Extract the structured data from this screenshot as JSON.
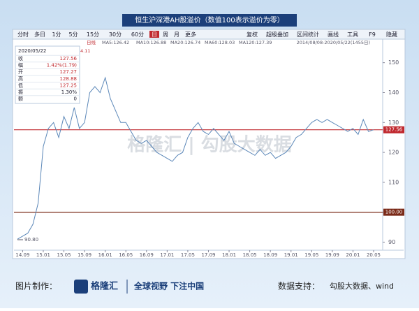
{
  "title": "恒生沪深港AH股溢价（数值100表示溢价为零）",
  "toolbar": {
    "left": [
      "分时",
      "多日",
      "1分",
      "5分",
      "15分",
      "30分",
      "60分",
      "日",
      "周",
      "月",
      "更多"
    ],
    "right": [
      "复权",
      "超级叠加",
      "区间统计",
      "画线",
      "工具",
      "F9",
      "隐藏"
    ]
  },
  "legend_bar": {
    "period": "日线",
    "ma": [
      "MA5:126.42",
      "MA10:126.88",
      "MA20:126.74",
      "MA60:128.03",
      "MA120:127.39"
    ],
    "range": "2014/08/08-2020/05/22(1455日)",
    "clipped": "4.11"
  },
  "info_panel": {
    "date": "2020/05/22",
    "rows": [
      [
        "收",
        "127.56"
      ],
      [
        "幅",
        "1.42%(1.79)"
      ],
      [
        "开",
        "127.27"
      ],
      [
        "高",
        "128.88"
      ],
      [
        "低",
        "127.25"
      ],
      [
        "振",
        "1.30%"
      ],
      [
        "额",
        "0"
      ]
    ]
  },
  "watermark": "格隆汇 | 勾股大数据",
  "footer": {
    "made_by": "图片制作：",
    "brand": "格隆汇",
    "slogan": "全球视野 下注中国",
    "data_label": "数据支持：",
    "data_source": "勾股大数据、wind"
  },
  "chart_data": {
    "type": "line",
    "categories": [
      null,
      "14.09",
      null,
      null,
      null,
      "15.01",
      null,
      null,
      null,
      "15.05",
      null,
      null,
      null,
      "15.09",
      null,
      null,
      null,
      "16.01",
      null,
      null,
      null,
      "16.05",
      null,
      null,
      null,
      "16.09",
      null,
      null,
      null,
      "17.01",
      null,
      null,
      null,
      "17.05",
      null,
      null,
      null,
      "17.09",
      null,
      null,
      null,
      "18.01",
      null,
      null,
      null,
      "18.05",
      null,
      null,
      null,
      "18.09",
      null,
      null,
      null,
      "19.01",
      null,
      null,
      null,
      "19.05",
      null,
      null,
      null,
      "19.09",
      null,
      null,
      null,
      "20.01",
      null,
      null,
      null,
      "20.05"
    ],
    "series": [
      {
        "color": "#5b87b8",
        "values": [
          91,
          92,
          93,
          96,
          103,
          122,
          128,
          130,
          125,
          132,
          128,
          135,
          128,
          130,
          140,
          142,
          140,
          145,
          138,
          134,
          130,
          130,
          127,
          124,
          123,
          124,
          122,
          120,
          119,
          118,
          117,
          119,
          120,
          125,
          128,
          130,
          127,
          126,
          128,
          126,
          124,
          127,
          123,
          122,
          121,
          120,
          119,
          121,
          119,
          120,
          118,
          119,
          120,
          122,
          125,
          126,
          128,
          130,
          131,
          130,
          131,
          130,
          129,
          128,
          127,
          128,
          126,
          131,
          127,
          127.56
        ]
      }
    ],
    "ylim": [
      88,
      156
    ],
    "yticks": [
      90,
      100,
      110,
      120,
      130,
      140,
      150
    ],
    "reference_lines": [
      {
        "value": 127.56,
        "label": "127.56",
        "color": "#c0282e"
      },
      {
        "value": 100,
        "label": "100.00",
        "color": "#7a2a18"
      }
    ],
    "annotations": [
      {
        "value": 90.8,
        "label": "90.80"
      }
    ]
  }
}
